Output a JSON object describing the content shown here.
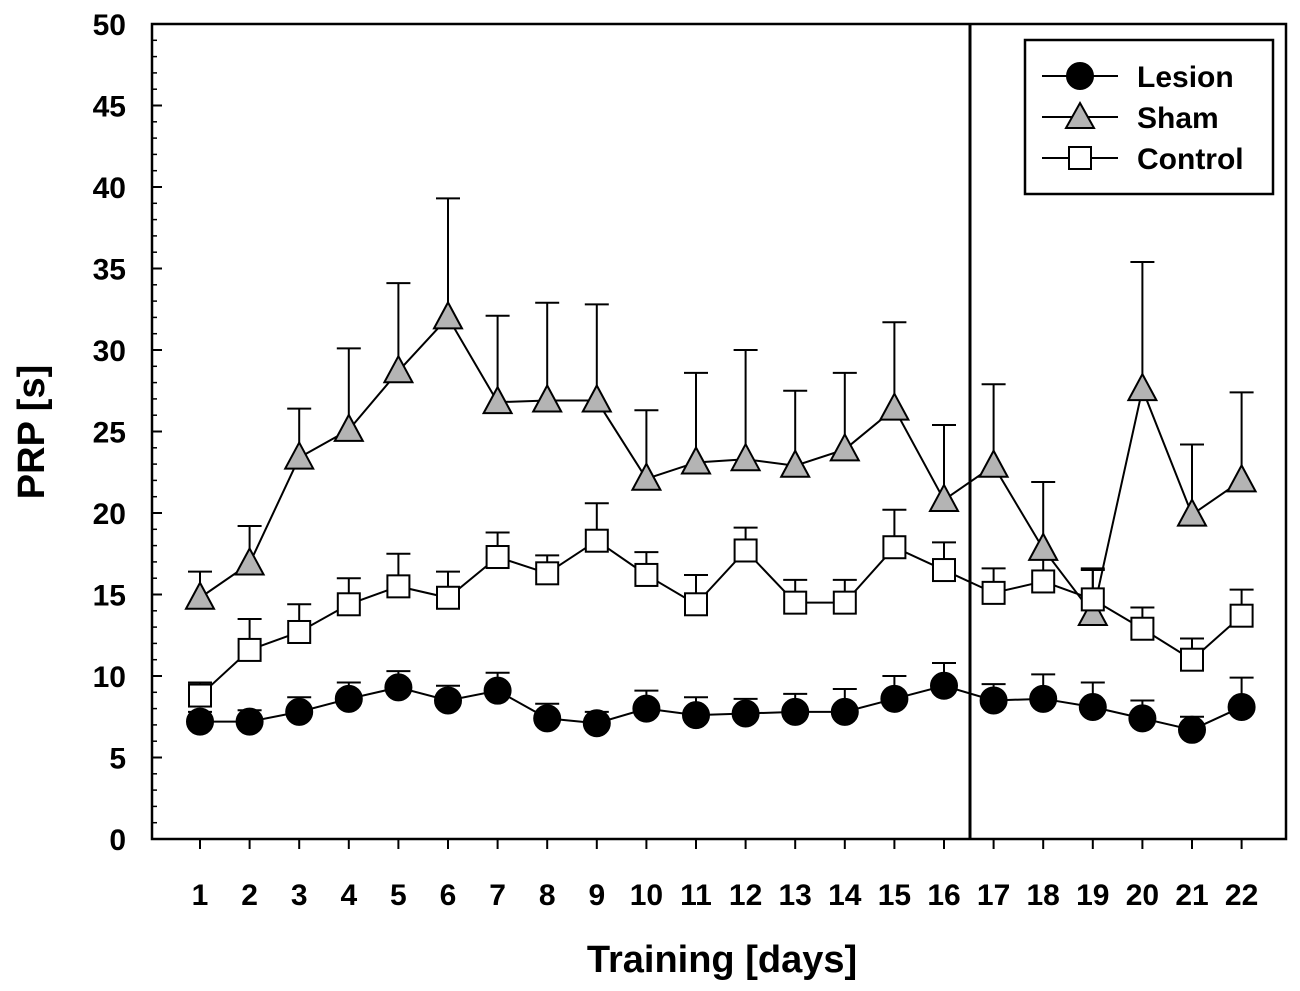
{
  "chart_data": {
    "type": "line",
    "xlabel": "Training [days]",
    "ylabel": "PRP [s]",
    "ylim": [
      0,
      50
    ],
    "y_ticks": [
      "0",
      "5",
      "10",
      "15",
      "20",
      "25",
      "30",
      "35",
      "40",
      "45",
      "50"
    ],
    "categories": [
      "1",
      "2",
      "3",
      "4",
      "5",
      "6",
      "7",
      "8",
      "9",
      "10",
      "11",
      "12",
      "13",
      "14",
      "15",
      "16",
      "17",
      "18",
      "19",
      "20",
      "21",
      "22"
    ],
    "divider_between": [
      16,
      17
    ],
    "legend_position": "top-right",
    "series": [
      {
        "name": "Lesion",
        "marker": "circle",
        "fill": "#000000",
        "values": [
          7.2,
          7.2,
          7.8,
          8.6,
          9.3,
          8.5,
          9.1,
          7.4,
          7.1,
          8.0,
          7.6,
          7.7,
          7.8,
          7.8,
          8.6,
          9.4,
          8.5,
          8.6,
          8.1,
          7.4,
          6.7,
          8.1
        ],
        "errors": [
          0.6,
          0.7,
          0.9,
          1.0,
          1.0,
          0.9,
          1.1,
          0.9,
          0.7,
          1.1,
          1.1,
          0.9,
          1.1,
          1.4,
          1.4,
          1.4,
          1.0,
          1.5,
          1.5,
          1.1,
          0.8,
          1.8
        ]
      },
      {
        "name": "Sham",
        "marker": "triangle",
        "fill": "#b4b4b4",
        "values": [
          14.8,
          16.9,
          23.4,
          25.1,
          28.7,
          32.0,
          26.8,
          26.9,
          26.9,
          22.1,
          23.1,
          23.3,
          22.9,
          23.9,
          26.4,
          20.8,
          22.9,
          17.8,
          13.8,
          27.6,
          19.9,
          22.0
        ],
        "errors": [
          1.6,
          2.3,
          3.0,
          5.0,
          5.4,
          7.3,
          5.3,
          6.0,
          5.9,
          4.2,
          5.5,
          6.7,
          4.6,
          4.7,
          5.3,
          4.6,
          5.0,
          4.1,
          2.8,
          7.8,
          4.3,
          5.4
        ]
      },
      {
        "name": "Control",
        "marker": "square",
        "fill": "#ffffff",
        "values": [
          8.8,
          11.6,
          12.7,
          14.4,
          15.5,
          14.8,
          17.3,
          16.3,
          18.3,
          16.2,
          14.4,
          17.7,
          14.5,
          14.5,
          17.9,
          16.5,
          15.1,
          15.8,
          14.7,
          12.9,
          11.0,
          13.7
        ],
        "errors": [
          0.8,
          1.9,
          1.7,
          1.6,
          2.0,
          1.6,
          1.5,
          1.1,
          2.3,
          1.4,
          1.8,
          1.4,
          1.4,
          1.4,
          2.3,
          1.7,
          1.5,
          1.4,
          1.8,
          1.3,
          1.3,
          1.6
        ]
      }
    ]
  }
}
